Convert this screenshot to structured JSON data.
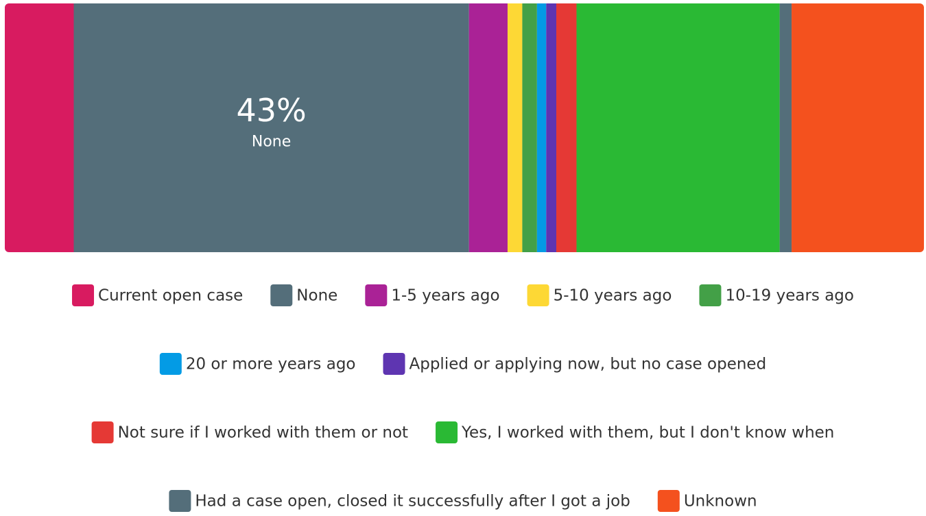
{
  "chart_data": {
    "type": "bar",
    "orientation": "horizontal",
    "stacked": true,
    "xlim": [
      0,
      100
    ],
    "series": [
      {
        "name": "Current open case",
        "color": "#d81b60",
        "values": [
          7.5
        ]
      },
      {
        "name": "None",
        "color": "#546e7a",
        "values": [
          43
        ],
        "value_labels": [
          "43%"
        ]
      },
      {
        "name": "1-5 years ago",
        "color": "#aa2296",
        "values": [
          4.2
        ]
      },
      {
        "name": "5-10 years ago",
        "color": "#fdd835",
        "values": [
          1.6
        ]
      },
      {
        "name": "10-19 years ago",
        "color": "#43a047",
        "values": [
          1.6
        ]
      },
      {
        "name": "20 or more years ago",
        "color": "#039be5",
        "values": [
          1.0
        ]
      },
      {
        "name": "Applied or applying now, but no case opened",
        "color": "#5e35b1",
        "values": [
          1.1
        ]
      },
      {
        "name": "Not sure if I worked with them or not",
        "color": "#e53935",
        "values": [
          2.2
        ]
      },
      {
        "name": "Yes, I worked with them, but I don't know when",
        "color": "#2ab934",
        "values": [
          22.1
        ]
      },
      {
        "name": "Had a case open, closed it successfully after I got a job",
        "color": "#546e7a",
        "values": [
          1.3
        ]
      },
      {
        "name": "Unknown",
        "color": "#f4511e",
        "values": [
          14.4
        ]
      }
    ]
  }
}
